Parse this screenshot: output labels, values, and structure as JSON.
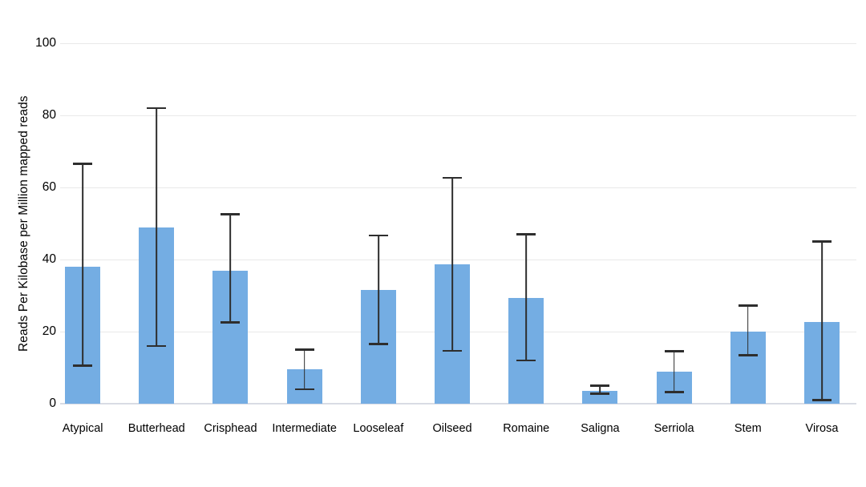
{
  "chart_data": {
    "type": "bar",
    "title": "",
    "xlabel": "",
    "ylabel": "Reads Per Kilobase per Million mapped reads",
    "ylim": [
      0,
      100
    ],
    "yticks": [
      0,
      20,
      40,
      60,
      80,
      100
    ],
    "grid": true,
    "legend": "none",
    "categories": [
      "Atypical",
      "Butterhead",
      "Crisphead",
      "Intermediate",
      "Looseleaf",
      "Oilseed",
      "Romaine",
      "Saligna",
      "Serriola",
      "Stem",
      "Virosa"
    ],
    "series": [
      {
        "values": [
          38,
          49,
          37,
          9.5,
          31.5,
          38.7,
          29.3,
          3.5,
          8.8,
          20,
          22.7
        ],
        "error_low": [
          10.5,
          16,
          22.5,
          4,
          16.5,
          14.7,
          12,
          2.8,
          3.2,
          13.5,
          1
        ],
        "error_high": [
          66.5,
          82,
          52.5,
          15,
          46.7,
          62.7,
          47,
          5,
          14.5,
          27.2,
          45
        ]
      }
    ],
    "colors": {
      "bar_fill": "#74ade3",
      "error_bar": "#2e2e2e",
      "gridline": "#e9e9e9",
      "axis_line": "#d9dce4",
      "text": "#000000",
      "background": "#ffffff"
    }
  }
}
